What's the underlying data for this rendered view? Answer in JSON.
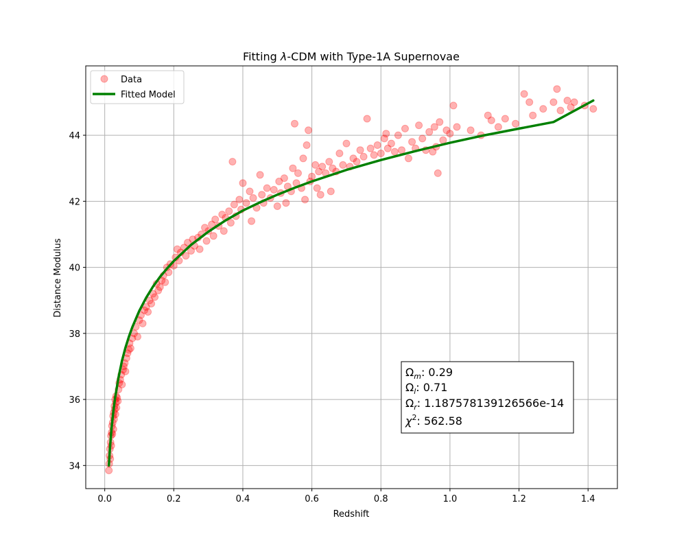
{
  "chart_data": {
    "type": "scatter",
    "title_parts": [
      "Fitting ",
      "λ",
      "-CDM with Type-1A Supernovae"
    ],
    "xlabel": "Redshift",
    "ylabel": "Distance Modulus",
    "xlim": [
      -0.055,
      1.485
    ],
    "ylim": [
      33.3,
      46.1
    ],
    "xticks": [
      0.0,
      0.2,
      0.4,
      0.6,
      0.8,
      1.0,
      1.2,
      1.4
    ],
    "xtick_labels": [
      "0.0",
      "0.2",
      "0.4",
      "0.6",
      "0.8",
      "1.0",
      "1.2",
      "1.4"
    ],
    "yticks": [
      34,
      36,
      38,
      40,
      42,
      44
    ],
    "ytick_labels": [
      "34",
      "36",
      "38",
      "40",
      "42",
      "44"
    ],
    "grid": true,
    "legend_position": "top-left",
    "colors": {
      "data": "#ff0000",
      "model": "#008000",
      "grid": "#b0b0b0"
    },
    "series": [
      {
        "name": "Data",
        "kind": "scatter",
        "points": [
          [
            0.012,
            33.85
          ],
          [
            0.013,
            34.05
          ],
          [
            0.014,
            34.3
          ],
          [
            0.015,
            34.5
          ],
          [
            0.016,
            34.2
          ],
          [
            0.017,
            34.7
          ],
          [
            0.018,
            34.9
          ],
          [
            0.019,
            34.6
          ],
          [
            0.02,
            35.0
          ],
          [
            0.021,
            35.2
          ],
          [
            0.022,
            34.95
          ],
          [
            0.023,
            35.3
          ],
          [
            0.024,
            35.5
          ],
          [
            0.025,
            35.1
          ],
          [
            0.026,
            35.6
          ],
          [
            0.027,
            35.4
          ],
          [
            0.028,
            35.8
          ],
          [
            0.029,
            35.7
          ],
          [
            0.03,
            36.0
          ],
          [
            0.031,
            35.55
          ],
          [
            0.032,
            35.9
          ],
          [
            0.033,
            36.1
          ],
          [
            0.034,
            35.75
          ],
          [
            0.036,
            36.05
          ],
          [
            0.038,
            35.95
          ],
          [
            0.04,
            36.3
          ],
          [
            0.042,
            36.5
          ],
          [
            0.045,
            36.6
          ],
          [
            0.048,
            36.75
          ],
          [
            0.05,
            36.45
          ],
          [
            0.053,
            36.9
          ],
          [
            0.055,
            37.0
          ],
          [
            0.058,
            37.1
          ],
          [
            0.06,
            36.85
          ],
          [
            0.063,
            37.25
          ],
          [
            0.066,
            37.4
          ],
          [
            0.07,
            37.5
          ],
          [
            0.072,
            37.7
          ],
          [
            0.075,
            37.55
          ],
          [
            0.08,
            37.85
          ],
          [
            0.085,
            38.0
          ],
          [
            0.09,
            38.2
          ],
          [
            0.095,
            37.9
          ],
          [
            0.1,
            38.4
          ],
          [
            0.105,
            38.55
          ],
          [
            0.11,
            38.3
          ],
          [
            0.115,
            38.7
          ],
          [
            0.12,
            38.8
          ],
          [
            0.125,
            38.65
          ],
          [
            0.13,
            39.0
          ],
          [
            0.135,
            38.9
          ],
          [
            0.14,
            39.2
          ],
          [
            0.145,
            39.1
          ],
          [
            0.15,
            39.5
          ],
          [
            0.155,
            39.3
          ],
          [
            0.16,
            39.4
          ],
          [
            0.165,
            39.6
          ],
          [
            0.17,
            39.75
          ],
          [
            0.175,
            39.55
          ],
          [
            0.18,
            40.0
          ],
          [
            0.185,
            39.85
          ],
          [
            0.19,
            40.1
          ],
          [
            0.2,
            40.05
          ],
          [
            0.205,
            40.3
          ],
          [
            0.21,
            40.55
          ],
          [
            0.215,
            40.2
          ],
          [
            0.22,
            40.45
          ],
          [
            0.23,
            40.6
          ],
          [
            0.235,
            40.35
          ],
          [
            0.24,
            40.75
          ],
          [
            0.25,
            40.5
          ],
          [
            0.255,
            40.85
          ],
          [
            0.26,
            40.65
          ],
          [
            0.27,
            40.9
          ],
          [
            0.275,
            40.55
          ],
          [
            0.28,
            41.0
          ],
          [
            0.29,
            41.2
          ],
          [
            0.295,
            40.8
          ],
          [
            0.3,
            41.1
          ],
          [
            0.31,
            41.3
          ],
          [
            0.315,
            40.95
          ],
          [
            0.32,
            41.45
          ],
          [
            0.33,
            41.25
          ],
          [
            0.34,
            41.6
          ],
          [
            0.345,
            41.1
          ],
          [
            0.35,
            41.5
          ],
          [
            0.36,
            41.7
          ],
          [
            0.365,
            41.35
          ],
          [
            0.37,
            43.2
          ],
          [
            0.375,
            41.9
          ],
          [
            0.38,
            41.55
          ],
          [
            0.39,
            42.05
          ],
          [
            0.395,
            41.75
          ],
          [
            0.4,
            42.55
          ],
          [
            0.41,
            41.95
          ],
          [
            0.42,
            42.3
          ],
          [
            0.425,
            41.4
          ],
          [
            0.43,
            42.1
          ],
          [
            0.44,
            41.8
          ],
          [
            0.45,
            42.8
          ],
          [
            0.455,
            42.2
          ],
          [
            0.46,
            41.95
          ],
          [
            0.47,
            42.4
          ],
          [
            0.48,
            42.1
          ],
          [
            0.49,
            42.35
          ],
          [
            0.5,
            41.85
          ],
          [
            0.505,
            42.6
          ],
          [
            0.51,
            42.25
          ],
          [
            0.52,
            42.7
          ],
          [
            0.525,
            41.95
          ],
          [
            0.53,
            42.45
          ],
          [
            0.54,
            42.3
          ],
          [
            0.545,
            43.0
          ],
          [
            0.55,
            44.35
          ],
          [
            0.555,
            42.55
          ],
          [
            0.56,
            42.85
          ],
          [
            0.57,
            42.4
          ],
          [
            0.575,
            43.3
          ],
          [
            0.58,
            42.05
          ],
          [
            0.585,
            43.7
          ],
          [
            0.59,
            44.15
          ],
          [
            0.595,
            42.6
          ],
          [
            0.6,
            42.75
          ],
          [
            0.61,
            43.1
          ],
          [
            0.615,
            42.4
          ],
          [
            0.62,
            42.9
          ],
          [
            0.625,
            42.2
          ],
          [
            0.63,
            43.05
          ],
          [
            0.64,
            42.85
          ],
          [
            0.65,
            43.2
          ],
          [
            0.655,
            42.3
          ],
          [
            0.66,
            43.0
          ],
          [
            0.67,
            42.9
          ],
          [
            0.68,
            43.45
          ],
          [
            0.69,
            43.1
          ],
          [
            0.7,
            43.75
          ],
          [
            0.71,
            43.05
          ],
          [
            0.72,
            43.3
          ],
          [
            0.73,
            43.2
          ],
          [
            0.74,
            43.55
          ],
          [
            0.75,
            43.35
          ],
          [
            0.76,
            44.5
          ],
          [
            0.77,
            43.6
          ],
          [
            0.78,
            43.4
          ],
          [
            0.79,
            43.7
          ],
          [
            0.8,
            43.45
          ],
          [
            0.81,
            43.9
          ],
          [
            0.815,
            44.05
          ],
          [
            0.82,
            43.6
          ],
          [
            0.83,
            43.75
          ],
          [
            0.84,
            43.5
          ],
          [
            0.85,
            44.0
          ],
          [
            0.86,
            43.55
          ],
          [
            0.87,
            44.2
          ],
          [
            0.88,
            43.3
          ],
          [
            0.89,
            43.8
          ],
          [
            0.9,
            43.6
          ],
          [
            0.91,
            44.3
          ],
          [
            0.92,
            43.9
          ],
          [
            0.93,
            43.55
          ],
          [
            0.94,
            44.1
          ],
          [
            0.95,
            43.5
          ],
          [
            0.955,
            44.25
          ],
          [
            0.96,
            43.65
          ],
          [
            0.965,
            42.85
          ],
          [
            0.97,
            44.4
          ],
          [
            0.98,
            43.85
          ],
          [
            0.99,
            44.15
          ],
          [
            1.0,
            44.05
          ],
          [
            1.01,
            44.9
          ],
          [
            1.02,
            44.25
          ],
          [
            1.06,
            44.15
          ],
          [
            1.09,
            44.0
          ],
          [
            1.11,
            44.6
          ],
          [
            1.12,
            44.45
          ],
          [
            1.14,
            44.25
          ],
          [
            1.16,
            44.5
          ],
          [
            1.19,
            44.35
          ],
          [
            1.215,
            45.25
          ],
          [
            1.23,
            45.0
          ],
          [
            1.24,
            44.6
          ],
          [
            1.27,
            44.8
          ],
          [
            1.3,
            45.0
          ],
          [
            1.31,
            45.4
          ],
          [
            1.32,
            44.75
          ],
          [
            1.34,
            45.05
          ],
          [
            1.35,
            44.85
          ],
          [
            1.36,
            45.0
          ],
          [
            1.39,
            44.9
          ],
          [
            1.415,
            44.8
          ]
        ]
      },
      {
        "name": "Fitted Model",
        "kind": "line",
        "x": [
          0.012,
          0.015,
          0.02,
          0.025,
          0.03,
          0.04,
          0.05,
          0.06,
          0.07,
          0.08,
          0.1,
          0.12,
          0.14,
          0.16,
          0.18,
          0.2,
          0.25,
          0.3,
          0.35,
          0.4,
          0.45,
          0.5,
          0.55,
          0.6,
          0.7,
          0.8,
          0.9,
          1.0,
          1.1,
          1.2,
          1.3,
          1.415
        ],
        "y": [
          34.0,
          34.5,
          35.15,
          35.65,
          36.05,
          36.67,
          37.17,
          37.57,
          37.9,
          38.19,
          38.68,
          39.08,
          39.42,
          39.71,
          39.96,
          40.19,
          40.68,
          41.08,
          41.42,
          41.72,
          41.97,
          42.2,
          42.41,
          42.6,
          42.95,
          43.25,
          43.52,
          43.77,
          44.0,
          44.2,
          44.4,
          45.05
        ]
      }
    ],
    "annotation": {
      "lines": [
        {
          "sym": "Ω",
          "sub": "m",
          "value": ": 0.29"
        },
        {
          "sym": "Ω",
          "sub": "l",
          "value": ": 0.71"
        },
        {
          "sym": "Ω",
          "sub": "r",
          "value": ": 1.187578139126566e-14"
        },
        {
          "sym": "χ",
          "sup": "2",
          "value": ": 562.58"
        }
      ]
    }
  }
}
